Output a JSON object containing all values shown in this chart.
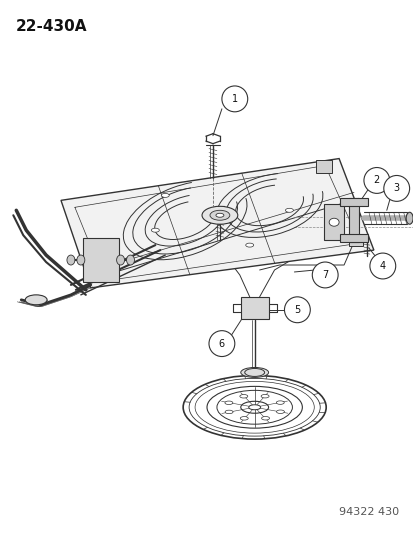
{
  "title": "22-430A",
  "footer": "94322 430",
  "bg_color": "#ffffff",
  "title_fontsize": 11,
  "title_fontweight": "bold",
  "footer_fontsize": 8,
  "line_color": "#333333",
  "callout_circle_r": 0.016,
  "callout_fontsize": 7
}
